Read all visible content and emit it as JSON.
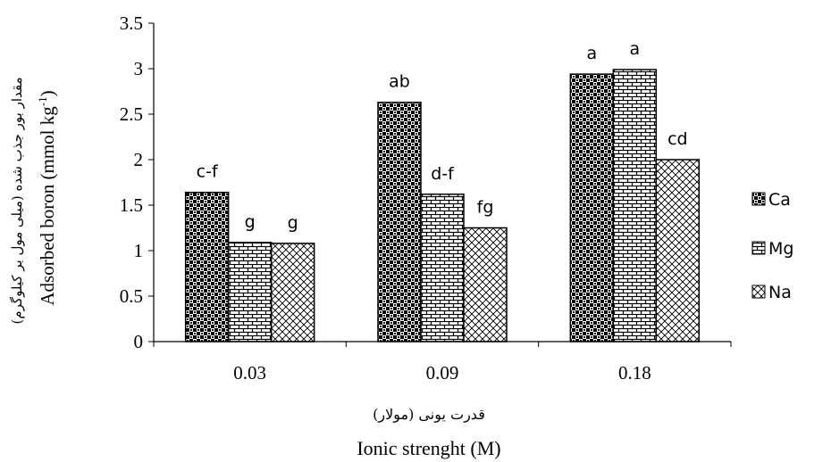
{
  "chart_data": {
    "type": "bar",
    "categories": [
      "0.03",
      "0.09",
      "0.18"
    ],
    "series": [
      {
        "name": "Ca",
        "pattern": "checker",
        "values": [
          1.64,
          2.63,
          2.94
        ],
        "labels": [
          "c-f",
          "ab",
          "a"
        ]
      },
      {
        "name": "Mg",
        "pattern": "brick",
        "values": [
          1.09,
          1.62,
          2.99
        ],
        "labels": [
          "g",
          "d-f",
          "a"
        ]
      },
      {
        "name": "Na",
        "pattern": "diagonal",
        "values": [
          1.08,
          1.25,
          2.0
        ],
        "labels": [
          "g",
          "fg",
          "cd"
        ]
      }
    ],
    "ylim": [
      0,
      3.5
    ],
    "yticks": [
      "0",
      "0.5",
      "1",
      "1.5",
      "2",
      "2.5",
      "3",
      "3.5"
    ],
    "ylabel_fa": "مقدار بور جذب شده (میلی مول بر کیلوگرم)",
    "ylabel_en": "Adsorbed boron (mmol kg",
    "ylabel_en_sup": "-1",
    "ylabel_en_end": ")",
    "xlabel_fa": "قدرت یونی (مولار)",
    "xlabel_en": "Ionic strenght (M)",
    "grid": false,
    "legend": "right"
  }
}
